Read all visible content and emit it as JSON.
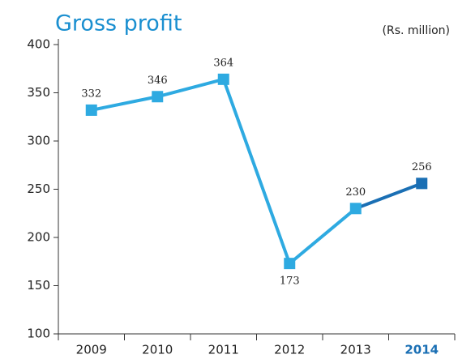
{
  "chart_data": {
    "type": "line",
    "title": "Gross profit",
    "unit_label": "(Rs. million)",
    "categories": [
      "2009",
      "2010",
      "2011",
      "2012",
      "2013",
      "2014"
    ],
    "series": [
      {
        "name": "Gross profit",
        "color": "#2eaae1",
        "values": [
          332,
          346,
          364,
          173,
          230,
          256
        ],
        "point_colors": [
          "#2eaae1",
          "#2eaae1",
          "#2eaae1",
          "#2eaae1",
          "#2eaae1",
          "#1a6fb4"
        ]
      }
    ],
    "ylim": [
      100,
      400
    ],
    "yticks": [
      100,
      150,
      200,
      250,
      300,
      350,
      400
    ]
  }
}
